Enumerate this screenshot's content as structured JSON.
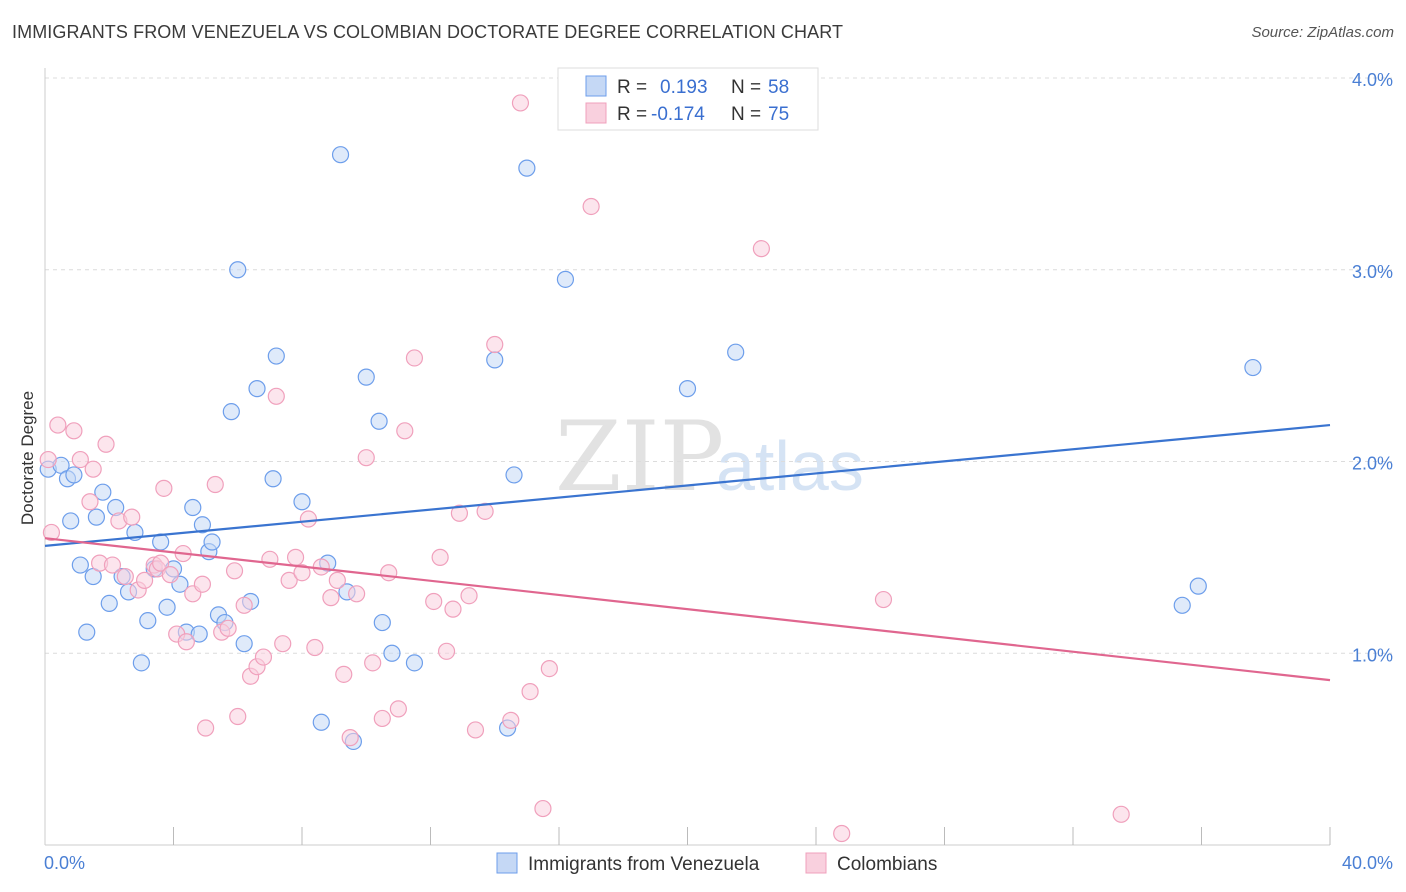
{
  "chart_data": {
    "type": "scatter",
    "title": "IMMIGRANTS FROM VENEZUELA VS COLOMBIAN DOCTORATE DEGREE CORRELATION CHART",
    "source": "Source: ZipAtlas.com",
    "xlabel": "",
    "ylabel": "Doctorate Degree",
    "xlim": [
      0,
      40
    ],
    "ylim": [
      0,
      4.0
    ],
    "x_tick_labels": [
      "0.0%",
      "40.0%"
    ],
    "y_ticks": [
      1.0,
      2.0,
      3.0,
      4.0
    ],
    "y_tick_labels": [
      "1.0%",
      "2.0%",
      "3.0%",
      "4.0%"
    ],
    "legend": {
      "rows": [
        {
          "r_label": "R =",
          "r_value": "0.193",
          "n_label": "N =",
          "n_value": "58"
        },
        {
          "r_label": "R =",
          "r_value": "-0.174",
          "n_label": "N =",
          "n_value": "75"
        }
      ]
    },
    "watermark": {
      "zip": "ZIP",
      "atlas": "atlas"
    },
    "series": [
      {
        "name": "Immigrants from Venezuela",
        "color": "#6d9eeb",
        "fill": "#c5d8f5",
        "line_color": "#3a74d0",
        "trend": [
          [
            0,
            1.56
          ],
          [
            40,
            2.19
          ]
        ],
        "points": [
          [
            0.1,
            1.96
          ],
          [
            0.5,
            1.98
          ],
          [
            0.7,
            1.91
          ],
          [
            0.8,
            1.69
          ],
          [
            0.9,
            1.93
          ],
          [
            1.1,
            1.46
          ],
          [
            1.3,
            1.11
          ],
          [
            1.5,
            1.4
          ],
          [
            1.6,
            1.71
          ],
          [
            1.8,
            1.84
          ],
          [
            2.0,
            1.26
          ],
          [
            2.2,
            1.76
          ],
          [
            2.4,
            1.4
          ],
          [
            2.6,
            1.32
          ],
          [
            2.8,
            1.63
          ],
          [
            3.0,
            0.95
          ],
          [
            3.2,
            1.17
          ],
          [
            3.4,
            1.44
          ],
          [
            3.6,
            1.58
          ],
          [
            3.8,
            1.24
          ],
          [
            4.0,
            1.44
          ],
          [
            4.2,
            1.36
          ],
          [
            4.4,
            1.11
          ],
          [
            4.6,
            1.76
          ],
          [
            4.8,
            1.1
          ],
          [
            4.9,
            1.67
          ],
          [
            5.1,
            1.53
          ],
          [
            5.2,
            1.58
          ],
          [
            5.4,
            1.2
          ],
          [
            5.6,
            1.16
          ],
          [
            5.8,
            2.26
          ],
          [
            6.0,
            3.0
          ],
          [
            6.2,
            1.05
          ],
          [
            6.4,
            1.27
          ],
          [
            6.6,
            2.38
          ],
          [
            7.1,
            1.91
          ],
          [
            7.2,
            2.55
          ],
          [
            8.0,
            1.79
          ],
          [
            8.6,
            0.64
          ],
          [
            8.8,
            1.47
          ],
          [
            9.2,
            3.6
          ],
          [
            9.4,
            1.32
          ],
          [
            9.6,
            0.54
          ],
          [
            10.0,
            2.44
          ],
          [
            10.4,
            2.21
          ],
          [
            10.5,
            1.16
          ],
          [
            10.8,
            1.0
          ],
          [
            11.5,
            0.95
          ],
          [
            14.0,
            2.53
          ],
          [
            14.4,
            0.61
          ],
          [
            14.6,
            1.93
          ],
          [
            15.0,
            3.53
          ],
          [
            16.2,
            2.95
          ],
          [
            20.0,
            2.38
          ],
          [
            21.5,
            2.57
          ],
          [
            35.4,
            1.25
          ],
          [
            35.9,
            1.35
          ],
          [
            37.6,
            2.49
          ]
        ]
      },
      {
        "name": "Colombians",
        "color": "#f0a0bc",
        "fill": "#f9d0de",
        "line_color": "#e0668f",
        "trend": [
          [
            0,
            1.6
          ],
          [
            40,
            0.86
          ]
        ],
        "points": [
          [
            0.1,
            2.01
          ],
          [
            0.2,
            1.63
          ],
          [
            0.4,
            2.19
          ],
          [
            0.9,
            2.16
          ],
          [
            1.1,
            2.01
          ],
          [
            1.4,
            1.79
          ],
          [
            1.5,
            1.96
          ],
          [
            1.7,
            1.47
          ],
          [
            1.9,
            2.09
          ],
          [
            2.1,
            1.46
          ],
          [
            2.3,
            1.69
          ],
          [
            2.5,
            1.4
          ],
          [
            2.7,
            1.71
          ],
          [
            2.9,
            1.33
          ],
          [
            3.1,
            1.38
          ],
          [
            3.4,
            1.46
          ],
          [
            3.5,
            1.44
          ],
          [
            3.6,
            1.47
          ],
          [
            3.7,
            1.86
          ],
          [
            3.9,
            1.41
          ],
          [
            4.1,
            1.1
          ],
          [
            4.3,
            1.52
          ],
          [
            4.4,
            1.06
          ],
          [
            4.6,
            1.31
          ],
          [
            4.9,
            1.36
          ],
          [
            5.0,
            0.61
          ],
          [
            5.3,
            1.88
          ],
          [
            5.5,
            1.11
          ],
          [
            5.7,
            1.13
          ],
          [
            5.9,
            1.43
          ],
          [
            6.0,
            0.67
          ],
          [
            6.2,
            1.25
          ],
          [
            6.4,
            0.88
          ],
          [
            6.6,
            0.93
          ],
          [
            6.8,
            0.98
          ],
          [
            7.0,
            1.49
          ],
          [
            7.2,
            2.34
          ],
          [
            7.4,
            1.05
          ],
          [
            7.6,
            1.38
          ],
          [
            7.8,
            1.5
          ],
          [
            8.0,
            1.42
          ],
          [
            8.2,
            1.7
          ],
          [
            8.4,
            1.03
          ],
          [
            8.6,
            1.45
          ],
          [
            8.9,
            1.29
          ],
          [
            9.1,
            1.38
          ],
          [
            9.3,
            0.89
          ],
          [
            9.5,
            0.56
          ],
          [
            9.7,
            1.31
          ],
          [
            10.0,
            2.02
          ],
          [
            10.2,
            0.95
          ],
          [
            10.5,
            0.66
          ],
          [
            10.7,
            1.42
          ],
          [
            11.0,
            0.71
          ],
          [
            11.2,
            2.16
          ],
          [
            11.5,
            2.54
          ],
          [
            12.1,
            1.27
          ],
          [
            12.3,
            1.5
          ],
          [
            12.5,
            1.01
          ],
          [
            12.7,
            1.23
          ],
          [
            12.9,
            1.73
          ],
          [
            13.2,
            1.3
          ],
          [
            13.4,
            0.6
          ],
          [
            13.7,
            1.74
          ],
          [
            14.0,
            2.61
          ],
          [
            14.5,
            0.65
          ],
          [
            14.8,
            3.87
          ],
          [
            15.1,
            0.8
          ],
          [
            15.5,
            0.19
          ],
          [
            15.7,
            0.92
          ],
          [
            17.0,
            3.33
          ],
          [
            22.3,
            3.11
          ],
          [
            24.8,
            0.06
          ],
          [
            26.1,
            1.28
          ],
          [
            33.5,
            0.16
          ]
        ]
      }
    ]
  }
}
